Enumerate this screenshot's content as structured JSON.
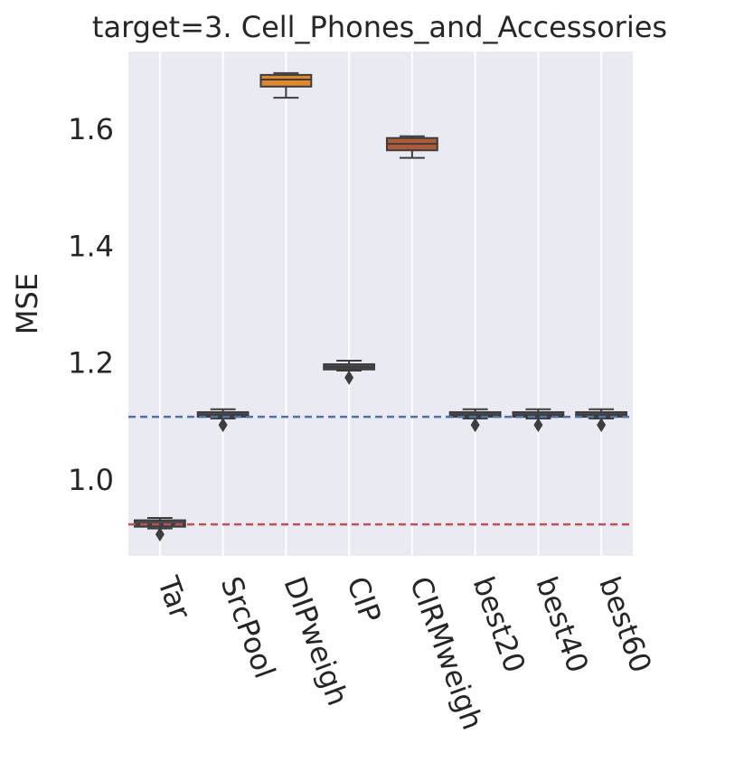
{
  "chart_data": {
    "type": "box",
    "title": "target=3. Cell_Phones_and_Accessories",
    "y_label": "MSE",
    "categories": [
      "Tar",
      "SrcPool",
      "DIPweigh",
      "CIP",
      "CIRMweigh",
      "best20",
      "best40",
      "best60"
    ],
    "boxes": [
      {
        "whisker_low": 0.92,
        "q1": 0.923,
        "median": 0.927,
        "q3": 0.934,
        "whisker_high": 0.938,
        "outliers": [
          0.91
        ],
        "color": "#4a4a4f"
      },
      {
        "whisker_low": 1.108,
        "q1": 1.111,
        "median": 1.114,
        "q3": 1.119,
        "whisker_high": 1.124,
        "outliers": [
          1.097
        ],
        "color": "#4a4a4f"
      },
      {
        "whisker_low": 1.657,
        "q1": 1.676,
        "median": 1.688,
        "q3": 1.696,
        "whisker_high": 1.699,
        "outliers": [],
        "color": "#e0892c"
      },
      {
        "whisker_low": 1.19,
        "q1": 1.192,
        "median": 1.196,
        "q3": 1.201,
        "whisker_high": 1.207,
        "outliers": [
          1.178
        ],
        "color": "#4a4a4f"
      },
      {
        "whisker_low": 1.554,
        "q1": 1.567,
        "median": 1.578,
        "q3": 1.588,
        "whisker_high": 1.591,
        "outliers": [],
        "color": "#b05a3a"
      },
      {
        "whisker_low": 1.108,
        "q1": 1.111,
        "median": 1.114,
        "q3": 1.119,
        "whisker_high": 1.124,
        "outliers": [
          1.097
        ],
        "color": "#4a4a4f"
      },
      {
        "whisker_low": 1.108,
        "q1": 1.111,
        "median": 1.114,
        "q3": 1.119,
        "whisker_high": 1.124,
        "outliers": [
          1.097
        ],
        "color": "#4a4a4f"
      },
      {
        "whisker_low": 1.108,
        "q1": 1.111,
        "median": 1.114,
        "q3": 1.119,
        "whisker_high": 1.124,
        "outliers": [
          1.097
        ],
        "color": "#4a4a4f"
      }
    ],
    "reference_lines": [
      {
        "value": 1.111,
        "color": "#4c72b0"
      },
      {
        "value": 0.927,
        "color": "#c44e52"
      }
    ],
    "ylim": [
      0.873,
      1.736
    ],
    "yticks": [
      {
        "value": 1.0,
        "label": "1.0"
      },
      {
        "value": 1.2,
        "label": "1.2"
      },
      {
        "value": 1.4,
        "label": "1.4"
      },
      {
        "value": 1.6,
        "label": "1.6"
      }
    ],
    "grid": "x"
  }
}
